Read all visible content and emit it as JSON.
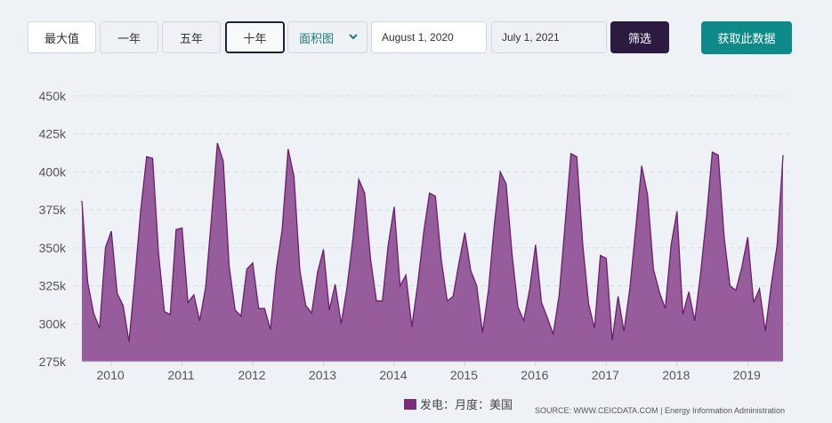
{
  "toolbar": {
    "range_buttons": [
      "最大值",
      "一年",
      "五年",
      "十年"
    ],
    "chart_type_select": "面积图",
    "start_date": "August 1, 2020",
    "end_date": "July 1, 2021",
    "filter_label": "筛选",
    "get_data_label": "获取此数据"
  },
  "colors": {
    "area_fill": "#8e4f94",
    "area_stroke": "#6a1f6e",
    "legend_swatch": "#7b2d7b",
    "filter_bg": "#2d1a40",
    "get_data_bg": "#0e8a8a"
  },
  "icons": {
    "select_chevron": "chevron-down-icon"
  },
  "chart_data": {
    "type": "area",
    "title": "",
    "xlabel": "",
    "ylabel": "",
    "ylim": [
      275000,
      450000
    ],
    "y_ticks": [
      "275k",
      "300k",
      "325k",
      "350k",
      "375k",
      "400k",
      "425k",
      "450k"
    ],
    "y_tick_values": [
      275000,
      300000,
      325000,
      350000,
      375000,
      400000,
      425000,
      450000
    ],
    "x_ticks": [
      "2010",
      "2011",
      "2012",
      "2013",
      "2014",
      "2015",
      "2016",
      "2017",
      "2018",
      "2019"
    ],
    "legend": "bottom-center",
    "grid": true,
    "series": [
      {
        "name": "发电：月度：美国",
        "x_start": "2009-08",
        "values": [
          381000,
          327000,
          307000,
          297000,
          350000,
          361000,
          320000,
          312000,
          288000,
          330000,
          375000,
          410000,
          409000,
          347000,
          308000,
          306000,
          362000,
          363000,
          314000,
          319000,
          302000,
          324000,
          370000,
          419000,
          407000,
          338000,
          309000,
          305000,
          336000,
          340000,
          310000,
          310000,
          296000,
          336000,
          362000,
          415000,
          397000,
          335000,
          312000,
          307000,
          334000,
          349000,
          309000,
          326000,
          300000,
          324000,
          356000,
          395000,
          386000,
          342000,
          315000,
          315000,
          352000,
          377000,
          325000,
          332000,
          298000,
          326000,
          360000,
          386000,
          384000,
          342000,
          315000,
          318000,
          340000,
          360000,
          335000,
          325000,
          294000,
          322000,
          365000,
          400000,
          392000,
          346000,
          311000,
          302000,
          323000,
          352000,
          314000,
          304000,
          293000,
          319000,
          365000,
          412000,
          410000,
          352000,
          313000,
          297000,
          345000,
          343000,
          289000,
          318000,
          295000,
          323000,
          363000,
          404000,
          385000,
          336000,
          321000,
          310000,
          352000,
          374000,
          306000,
          321000,
          302000,
          333000,
          370000,
          413000,
          411000,
          357000,
          325000,
          322000,
          337000,
          357000,
          314000,
          323000,
          295000,
          326000,
          352000,
          411000
        ]
      }
    ],
    "source": "SOURCE: WWW.CEICDATA.COM | Energy Information Administration"
  }
}
